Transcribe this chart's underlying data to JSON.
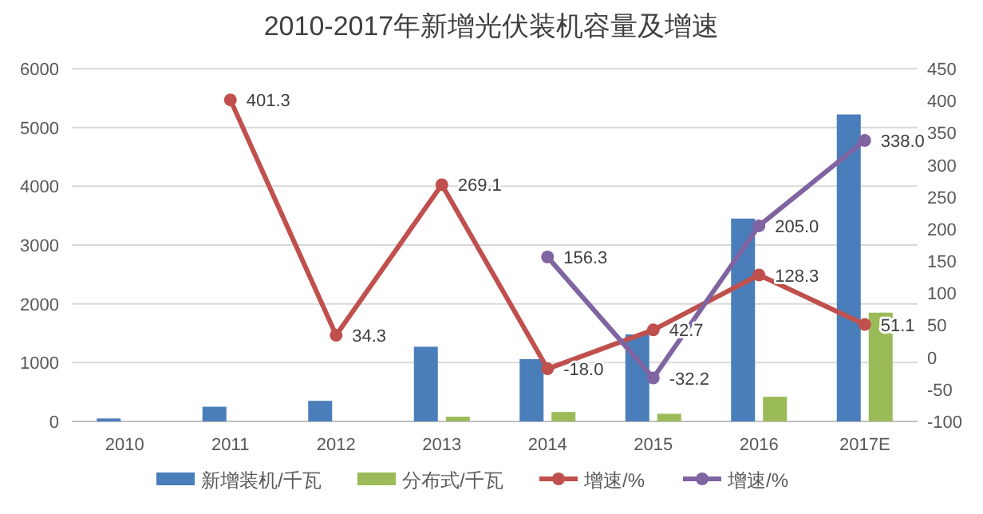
{
  "chart_data": {
    "type": "bar",
    "title": "2010-2017年新增光伏装机容量及增速",
    "categories": [
      "2010",
      "2011",
      "2012",
      "2013",
      "2014",
      "2015",
      "2016",
      "2017E"
    ],
    "series": [
      {
        "name": "新增装机/千瓦",
        "color": "#4a7ebb",
        "values": [
          50,
          250,
          350,
          1270,
          1060,
          1480,
          3450,
          5220
        ]
      },
      {
        "name": "分布式/千瓦",
        "color": "#9bbb59",
        "values": [
          null,
          null,
          null,
          80,
          160,
          130,
          420,
          1850
        ]
      },
      {
        "name": "增速/%",
        "type": "line",
        "axis": "y2",
        "color": "#c0504d",
        "marker": "circle",
        "values": [
          null,
          401.3,
          34.3,
          269.1,
          -18.0,
          42.7,
          128.3,
          51.1
        ],
        "value_labels": [
          null,
          "401.3",
          "34.3",
          "269.1",
          "-18.0",
          "42.7",
          "128.3",
          "51.1"
        ]
      },
      {
        "name": "增速/%",
        "type": "line",
        "axis": "y2",
        "color": "#8064a2",
        "marker": "circle",
        "values": [
          null,
          null,
          null,
          null,
          156.3,
          -32.2,
          205.0,
          338.0
        ],
        "value_labels": [
          null,
          null,
          null,
          null,
          "156.3",
          "-32.2",
          "205.0",
          "338.0"
        ]
      }
    ],
    "ylim": [
      0,
      6000
    ],
    "yticks": [
      0,
      1000,
      2000,
      3000,
      4000,
      5000,
      6000
    ],
    "y2lim": [
      -100,
      450
    ],
    "y2ticks": [
      -100,
      -50,
      0,
      50,
      100,
      150,
      200,
      250,
      300,
      350,
      400,
      450
    ],
    "grid": "y",
    "legend": "bottom"
  }
}
